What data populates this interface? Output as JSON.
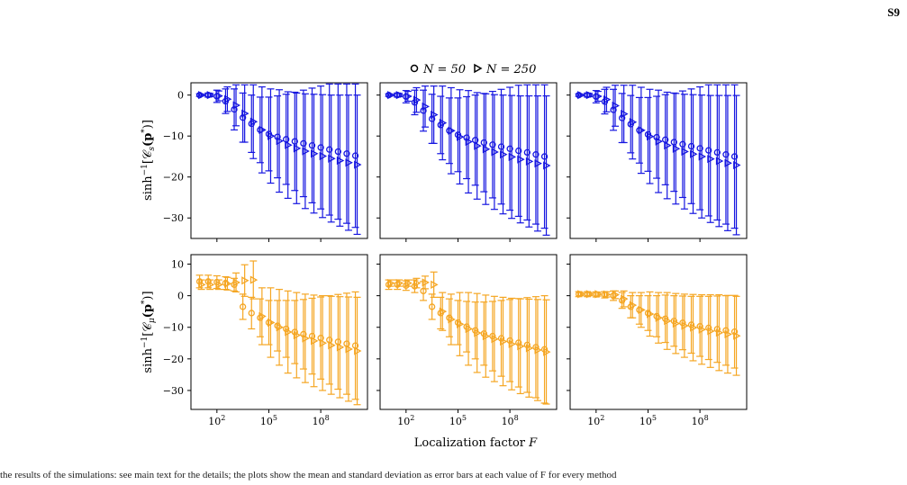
{
  "page_label": "S9",
  "footer_text": "the results of the simulations: see main text for the details; the plots show the mean and standard deviation as error bars at each value of F for every method",
  "legend": [
    {
      "label": "N = 50",
      "marker": "circle"
    },
    {
      "label": "N = 250",
      "marker": "triangle-right"
    }
  ],
  "xlabel": "Localization factor F",
  "x_ticks": [
    {
      "value": 2,
      "label": "10^2"
    },
    {
      "value": 5,
      "label": "10^5"
    },
    {
      "value": 8,
      "label": "10^8"
    }
  ],
  "colors": {
    "row1": "#1616e0",
    "row2": "#f5a623"
  },
  "chart_data": [
    {
      "type": "scatter",
      "panel": "row1-col1",
      "ylabel": "sinh^-1[C_s(p*)]",
      "xscale": "log10",
      "xlim": [
        0.5,
        10.7
      ],
      "ylim": [
        -35,
        3
      ],
      "y_ticks": [
        0,
        -10,
        -20,
        -30
      ],
      "x": [
        1.0,
        1.5,
        2.0,
        2.5,
        3.0,
        3.5,
        4.0,
        4.5,
        5.0,
        5.5,
        6.0,
        6.5,
        7.0,
        7.5,
        8.0,
        8.5,
        9.0,
        9.5,
        10.0
      ],
      "series": [
        {
          "name": "N = 50",
          "marker": "circle",
          "values": [
            0,
            0,
            -0.3,
            -1.5,
            -3.5,
            -5.5,
            -7,
            -8.5,
            -9.5,
            -10.2,
            -10.8,
            -11.3,
            -11.8,
            -12.3,
            -12.8,
            -13.3,
            -13.8,
            -14.3,
            -14.8
          ],
          "err": [
            0.3,
            0.5,
            1.5,
            3,
            5,
            6,
            7,
            8,
            9,
            10,
            11,
            12,
            13,
            14,
            15,
            16,
            16.5,
            17,
            17.5
          ]
        },
        {
          "name": "N = 250",
          "marker": "triangle-right",
          "values": [
            0,
            0,
            -0.2,
            -1,
            -2.5,
            -4.5,
            -6.5,
            -8.5,
            -10,
            -11.2,
            -12.2,
            -13,
            -13.7,
            -14.3,
            -14.9,
            -15.5,
            -16,
            -16.5,
            -17
          ],
          "err": [
            0.2,
            0.4,
            1.2,
            3,
            5,
            7,
            9,
            10.5,
            11.5,
            12.5,
            13,
            13.5,
            14,
            14.5,
            15,
            15.5,
            16,
            16.5,
            17
          ]
        }
      ]
    },
    {
      "type": "scatter",
      "panel": "row1-col2",
      "xscale": "log10",
      "xlim": [
        0.5,
        10.7
      ],
      "ylim": [
        -35,
        3
      ],
      "y_ticks": [
        0,
        -10,
        -20,
        -30
      ],
      "x": [
        1.0,
        1.5,
        2.0,
        2.5,
        3.0,
        3.5,
        4.0,
        4.5,
        5.0,
        5.5,
        6.0,
        6.5,
        7.0,
        7.5,
        8.0,
        8.5,
        9.0,
        9.5,
        10.0
      ],
      "series": [
        {
          "name": "N = 50",
          "marker": "circle",
          "values": [
            0,
            0,
            -0.4,
            -1.8,
            -3.8,
            -5.8,
            -7.3,
            -8.7,
            -9.7,
            -10.4,
            -11,
            -11.6,
            -12.1,
            -12.6,
            -13.1,
            -13.6,
            -14,
            -14.5,
            -15
          ],
          "err": [
            0.3,
            0.5,
            1.5,
            3,
            5,
            6,
            7,
            8,
            9,
            10,
            11,
            12,
            13,
            14,
            15,
            16,
            16.5,
            17,
            17.5
          ]
        },
        {
          "name": "N = 250",
          "marker": "triangle-right",
          "values": [
            0,
            0,
            -0.3,
            -1.2,
            -2.8,
            -4.8,
            -6.8,
            -8.7,
            -10.2,
            -11.4,
            -12.4,
            -13.2,
            -13.9,
            -14.5,
            -15.1,
            -15.7,
            -16.2,
            -16.7,
            -17.2
          ],
          "err": [
            0.2,
            0.4,
            1.2,
            3,
            5,
            7,
            9,
            10.5,
            11.5,
            12.5,
            13,
            13.5,
            14,
            14.5,
            15,
            15.5,
            16,
            16.5,
            17
          ]
        }
      ]
    },
    {
      "type": "scatter",
      "panel": "row1-col3",
      "xscale": "log10",
      "xlim": [
        0.5,
        10.7
      ],
      "ylim": [
        -35,
        3
      ],
      "y_ticks": [
        0,
        -10,
        -20,
        -30
      ],
      "x": [
        1.0,
        1.5,
        2.0,
        2.5,
        3.0,
        3.5,
        4.0,
        4.5,
        5.0,
        5.5,
        6.0,
        6.5,
        7.0,
        7.5,
        8.0,
        8.5,
        9.0,
        9.5,
        10.0
      ],
      "series": [
        {
          "name": "N = 50",
          "marker": "circle",
          "values": [
            0,
            0,
            -0.4,
            -1.6,
            -3.6,
            -5.6,
            -7.1,
            -8.6,
            -9.6,
            -10.3,
            -10.9,
            -11.5,
            -12,
            -12.5,
            -13,
            -13.5,
            -14,
            -14.5,
            -15
          ],
          "err": [
            0.3,
            0.5,
            1.5,
            3,
            5,
            6,
            7,
            8,
            9,
            10,
            11,
            12,
            13,
            14,
            15,
            16,
            16.5,
            17,
            17.5
          ]
        },
        {
          "name": "N = 250",
          "marker": "triangle-right",
          "values": [
            0,
            0,
            -0.3,
            -1.1,
            -2.6,
            -4.6,
            -6.6,
            -8.6,
            -10.1,
            -11.3,
            -12.3,
            -13.1,
            -13.8,
            -14.4,
            -15,
            -15.6,
            -16.1,
            -16.6,
            -17.1
          ],
          "err": [
            0.2,
            0.4,
            1.2,
            3,
            5,
            7,
            9,
            10.5,
            11.5,
            12.5,
            13,
            13.5,
            14,
            14.5,
            15,
            15.5,
            16,
            16.5,
            17
          ]
        }
      ]
    },
    {
      "type": "scatter",
      "panel": "row2-col1",
      "ylabel": "sinh^-1[C_μ(p*)]",
      "xscale": "log10",
      "xlim": [
        0.5,
        10.7
      ],
      "ylim": [
        -36,
        13
      ],
      "y_ticks": [
        10,
        0,
        -10,
        -20,
        -30
      ],
      "x": [
        1.0,
        1.5,
        2.0,
        2.5,
        3.0,
        3.5,
        4.0,
        4.5,
        5.0,
        5.5,
        6.0,
        6.5,
        7.0,
        7.5,
        8.0,
        8.5,
        9.0,
        9.5,
        10.0
      ],
      "series": [
        {
          "name": "N = 50",
          "marker": "circle",
          "values": [
            4.5,
            4.5,
            4.3,
            4,
            3.5,
            -3.5,
            -5.5,
            -7,
            -8.5,
            -9.5,
            -10.5,
            -11.5,
            -12.2,
            -12.8,
            -13.4,
            -14,
            -14.6,
            -15.2,
            -15.8
          ],
          "err": [
            2,
            2,
            2,
            2,
            2,
            4,
            5,
            6,
            7,
            8,
            9,
            10,
            11,
            12,
            13,
            14,
            15,
            16,
            17
          ]
        },
        {
          "name": "N = 250",
          "marker": "triangle-right",
          "values": [
            3.5,
            3.5,
            3.5,
            3.8,
            4.2,
            4.8,
            5,
            -6.5,
            -8.5,
            -10,
            -11.5,
            -12.5,
            -13.5,
            -14.3,
            -15,
            -15.7,
            -16.3,
            -16.9,
            -17.5
          ],
          "err": [
            1.5,
            1.5,
            1.5,
            2,
            3,
            5,
            6,
            9,
            11,
            12,
            13,
            13.5,
            14,
            14.5,
            15,
            15.5,
            16,
            16.5,
            17
          ]
        }
      ]
    },
    {
      "type": "scatter",
      "panel": "row2-col2",
      "xscale": "log10",
      "xlim": [
        0.5,
        10.7
      ],
      "ylim": [
        -36,
        13
      ],
      "y_ticks": [
        10,
        0,
        -10,
        -20,
        -30
      ],
      "x": [
        1.0,
        1.5,
        2.0,
        2.5,
        3.0,
        3.5,
        4.0,
        4.5,
        5.0,
        5.5,
        6.0,
        6.5,
        7.0,
        7.5,
        8.0,
        8.5,
        9.0,
        9.5,
        10.0
      ],
      "series": [
        {
          "name": "N = 50",
          "marker": "circle",
          "values": [
            3.5,
            3.5,
            3.2,
            3,
            1.5,
            -3.5,
            -5.5,
            -7,
            -8.5,
            -9.8,
            -11,
            -12,
            -12.8,
            -13.5,
            -14.2,
            -14.9,
            -15.6,
            -16.3,
            -17
          ],
          "err": [
            1.5,
            1.5,
            1.5,
            2,
            3,
            4,
            5,
            6,
            7,
            8,
            9,
            10,
            11,
            12,
            13,
            14,
            15,
            16,
            17
          ]
        },
        {
          "name": "N = 250",
          "marker": "triangle-right",
          "values": [
            4,
            4,
            4,
            4,
            4.2,
            3.5,
            -5,
            -7.5,
            -9,
            -10.5,
            -11.8,
            -12.8,
            -13.7,
            -14.5,
            -15.3,
            -16,
            -16.6,
            -17.2,
            -17.8
          ],
          "err": [
            1,
            1,
            1,
            1.5,
            2,
            4,
            6,
            8,
            10,
            11.5,
            12.5,
            13,
            13.5,
            14,
            14.5,
            15,
            15.5,
            16,
            16.5
          ]
        }
      ]
    },
    {
      "type": "scatter",
      "panel": "row2-col3",
      "xscale": "log10",
      "xlim": [
        0.5,
        10.7
      ],
      "ylim": [
        -36,
        13
      ],
      "y_ticks": [
        10,
        0,
        -10,
        -20,
        -30
      ],
      "x": [
        1.0,
        1.5,
        2.0,
        2.5,
        3.0,
        3.5,
        4.0,
        4.5,
        5.0,
        5.5,
        6.0,
        6.5,
        7.0,
        7.5,
        8.0,
        8.5,
        9.0,
        9.5,
        10.0
      ],
      "series": [
        {
          "name": "N = 50",
          "marker": "circle",
          "values": [
            0.5,
            0.5,
            0.4,
            0.3,
            0,
            -1.5,
            -3.5,
            -4.5,
            -5.5,
            -6.5,
            -7.3,
            -8,
            -8.6,
            -9.2,
            -9.7,
            -10.2,
            -10.6,
            -11,
            -11.4
          ],
          "err": [
            0.8,
            0.8,
            0.8,
            1,
            1.5,
            2.5,
            3.5,
            4.5,
            5.5,
            6.5,
            7.5,
            8,
            8.5,
            9,
            9.5,
            10,
            10.5,
            11,
            11.5
          ]
        },
        {
          "name": "N = 250",
          "marker": "triangle-right",
          "values": [
            0.5,
            0.5,
            0.5,
            0.4,
            0.3,
            -1,
            -3,
            -4.5,
            -5.8,
            -7,
            -8,
            -8.8,
            -9.5,
            -10.1,
            -10.7,
            -11.2,
            -11.7,
            -12.2,
            -12.7
          ],
          "err": [
            0.5,
            0.5,
            0.6,
            0.8,
            1.2,
            2.5,
            4,
            5.5,
            7,
            8,
            9,
            9.5,
            10,
            10.5,
            11,
            11.5,
            12,
            12.3,
            12.5
          ]
        }
      ]
    }
  ]
}
